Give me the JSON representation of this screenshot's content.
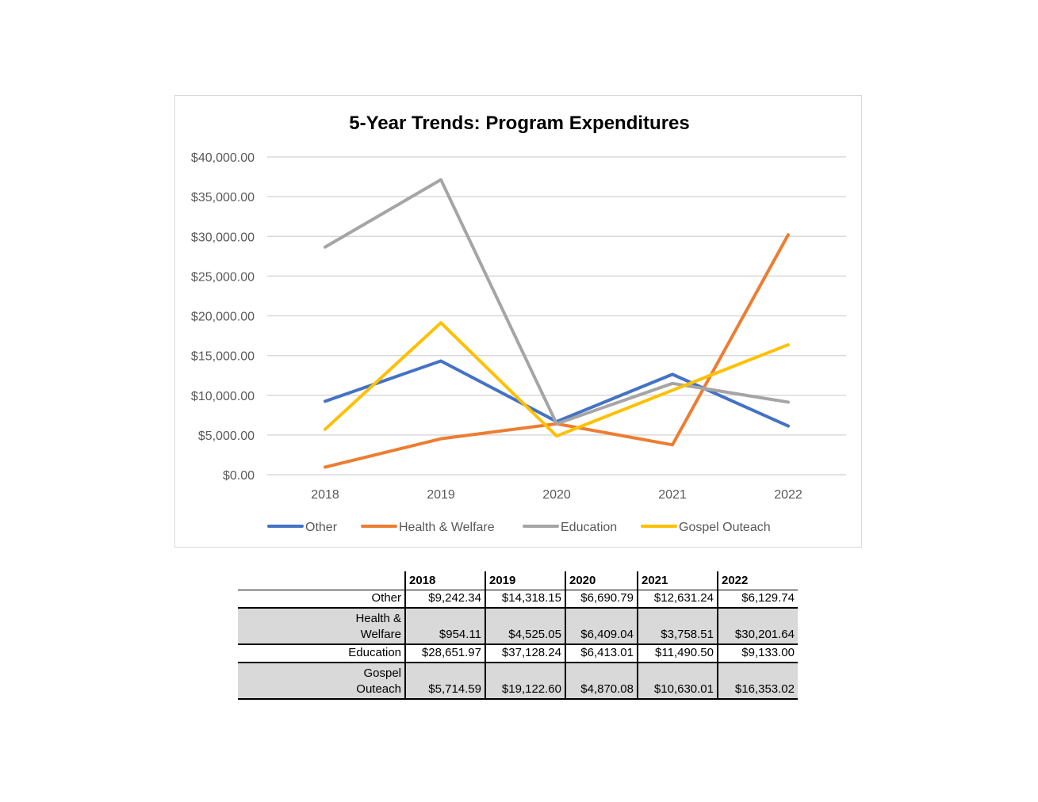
{
  "chart_data": {
    "type": "line",
    "title": "5-Year Trends: Program Expenditures",
    "categories": [
      "2018",
      "2019",
      "2020",
      "2021",
      "2022"
    ],
    "ylim": [
      0,
      40000
    ],
    "yticks": [
      "$0.00",
      "$5,000.00",
      "$10,000.00",
      "$15,000.00",
      "$20,000.00",
      "$25,000.00",
      "$30,000.00",
      "$35,000.00",
      "$40,000.00"
    ],
    "grid": true,
    "legend_position": "bottom",
    "series": [
      {
        "name": "Other",
        "color": "#4472c4",
        "values": [
          9242.34,
          14318.15,
          6690.79,
          12631.24,
          6129.74
        ]
      },
      {
        "name": "Health & Welfare",
        "color": "#ed7d31",
        "values": [
          954.11,
          4525.05,
          6409.04,
          3758.51,
          30201.64
        ]
      },
      {
        "name": "Education",
        "color": "#a5a5a5",
        "values": [
          28651.97,
          37128.24,
          6413.01,
          11490.5,
          9133.0
        ]
      },
      {
        "name": "Gospel Outeach",
        "color": "#ffc000",
        "values": [
          5714.59,
          19122.6,
          4870.08,
          10630.01,
          16353.02
        ]
      }
    ]
  },
  "table": {
    "headers": [
      "2018",
      "2019",
      "2020",
      "2021",
      "2022"
    ],
    "rows": [
      {
        "label_lines": [
          "Other"
        ],
        "cells": [
          "$9,242.34",
          "$14,318.15",
          "$6,690.79",
          "$12,631.24",
          "$6,129.74"
        ]
      },
      {
        "label_lines": [
          "Health &",
          "Welfare"
        ],
        "cells": [
          "$954.11",
          "$4,525.05",
          "$6,409.04",
          "$3,758.51",
          "$30,201.64"
        ]
      },
      {
        "label_lines": [
          "Education"
        ],
        "cells": [
          "$28,651.97",
          "$37,128.24",
          "$6,413.01",
          "$11,490.50",
          "$9,133.00"
        ]
      },
      {
        "label_lines": [
          "Gospel",
          "Outeach"
        ],
        "cells": [
          "$5,714.59",
          "$19,122.60",
          "$4,870.08",
          "$10,630.01",
          "$16,353.02"
        ]
      }
    ]
  }
}
